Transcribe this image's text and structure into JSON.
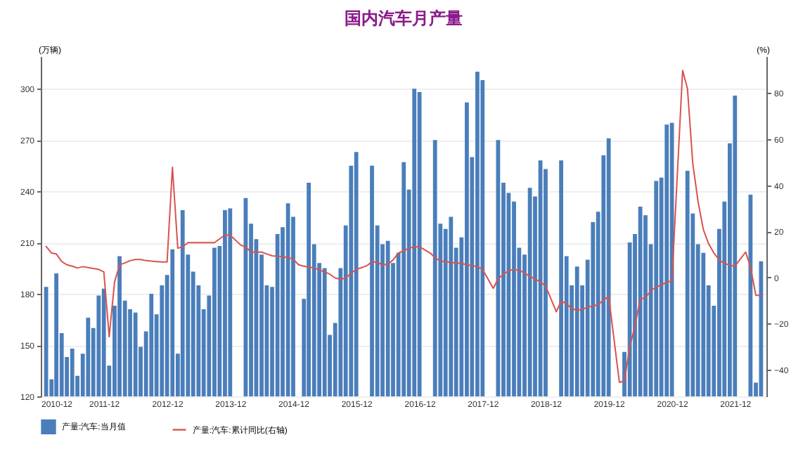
{
  "chart_data": {
    "type": "bar",
    "title": "国内汽车月产量",
    "ylabel": "(万辆)",
    "y2label": "(%)",
    "x": [
      "2011-01",
      "2011-02",
      "2011-03",
      "2011-04",
      "2011-05",
      "2011-06",
      "2011-07",
      "2011-08",
      "2011-09",
      "2011-10",
      "2011-11",
      "2011-12",
      "2012-01",
      "2012-02",
      "2012-03",
      "2012-04",
      "2012-05",
      "2012-06",
      "2012-07",
      "2012-08",
      "2012-09",
      "2012-10",
      "2012-11",
      "2012-12",
      "2013-01",
      "2013-02",
      "2013-03",
      "2013-04",
      "2013-05",
      "2013-06",
      "2013-07",
      "2013-08",
      "2013-09",
      "2013-10",
      "2013-11",
      "2013-12",
      "2014-01",
      "2014-02",
      "2014-03",
      "2014-04",
      "2014-05",
      "2014-06",
      "2014-07",
      "2014-08",
      "2014-09",
      "2014-10",
      "2014-11",
      "2014-12",
      "2015-01",
      "2015-02",
      "2015-03",
      "2015-04",
      "2015-05",
      "2015-06",
      "2015-07",
      "2015-08",
      "2015-09",
      "2015-10",
      "2015-11",
      "2015-12",
      "2016-01",
      "2016-02",
      "2016-03",
      "2016-04",
      "2016-05",
      "2016-06",
      "2016-07",
      "2016-08",
      "2016-09",
      "2016-10",
      "2016-11",
      "2016-12",
      "2017-01",
      "2017-02",
      "2017-03",
      "2017-04",
      "2017-05",
      "2017-06",
      "2017-07",
      "2017-08",
      "2017-09",
      "2017-10",
      "2017-11",
      "2017-12",
      "2018-01",
      "2018-02",
      "2018-03",
      "2018-04",
      "2018-05",
      "2018-06",
      "2018-07",
      "2018-08",
      "2018-09",
      "2018-10",
      "2018-11",
      "2018-12",
      "2019-01",
      "2019-02",
      "2019-03",
      "2019-04",
      "2019-05",
      "2019-06",
      "2019-07",
      "2019-08",
      "2019-09",
      "2019-10",
      "2019-11",
      "2019-12",
      "2020-01",
      "2020-02",
      "2020-03",
      "2020-04",
      "2020-05",
      "2020-06",
      "2020-07",
      "2020-08",
      "2020-09",
      "2020-10",
      "2020-11",
      "2020-12",
      "2021-01",
      "2021-02",
      "2021-03",
      "2021-04",
      "2021-05",
      "2021-06",
      "2021-07",
      "2021-08",
      "2021-09",
      "2021-10",
      "2021-11",
      "2021-12",
      "2022-01",
      "2022-02",
      "2022-03",
      "2022-04",
      "2022-05"
    ],
    "series": [
      {
        "name": "产量:汽车:当月值",
        "axis": "y",
        "color": "#4a7ebb",
        "values": [
          184,
          130,
          192,
          157,
          143,
          148,
          132,
          145,
          166,
          160,
          179,
          183,
          138,
          173,
          202,
          176,
          171,
          169,
          149,
          158,
          180,
          168,
          185,
          191,
          206,
          145,
          229,
          203,
          193,
          185,
          171,
          179,
          207,
          208,
          229,
          230,
          null,
          null,
          236,
          221,
          212,
          203,
          185,
          184,
          215,
          219,
          233,
          225,
          null,
          177,
          245,
          209,
          198,
          195,
          156,
          163,
          195,
          220,
          255,
          263,
          null,
          null,
          255,
          220,
          209,
          211,
          198,
          204,
          257,
          241,
          300,
          298,
          null,
          null,
          270,
          221,
          218,
          225,
          207,
          213,
          292,
          260,
          310,
          305,
          null,
          null,
          270,
          245,
          239,
          234,
          207,
          203,
          242,
          237,
          258,
          253,
          null,
          null,
          258,
          202,
          185,
          196,
          185,
          200,
          222,
          228,
          261,
          271,
          null,
          null,
          146,
          210,
          215,
          231,
          226,
          209,
          246,
          248,
          279,
          280,
          null,
          null,
          252,
          227,
          209,
          204,
          185,
          173,
          218,
          234,
          268,
          296,
          null,
          null,
          238,
          128,
          199
        ]
      },
      {
        "name": "产量:汽车:累计同比(右轴)",
        "type": "line",
        "axis": "y2",
        "color": "#d9534f",
        "values": [
          13.5,
          10.6,
          10.2,
          6.9,
          5.5,
          4.9,
          4.1,
          4.7,
          4.3,
          3.9,
          3.5,
          2.4,
          -25.7,
          -2,
          5.5,
          6.3,
          7.3,
          7.8,
          7.8,
          7.3,
          7.1,
          6.9,
          6.7,
          6.7,
          47.8,
          12.7,
          13.3,
          15.1,
          15.1,
          15.1,
          15.1,
          15.1,
          15.1,
          16.7,
          18.4,
          18.4,
          null,
          14,
          13.3,
          11,
          11,
          11,
          10.2,
          9.4,
          9.2,
          9,
          8.6,
          8,
          5.5,
          4.9,
          4.5,
          4.1,
          3.3,
          2.4,
          1.4,
          -0.2,
          -0.8,
          -0.2,
          1.8,
          3.5,
          null,
          5.1,
          6.9,
          6.5,
          5.5,
          5.7,
          7.6,
          10.6,
          11.6,
          12.7,
          13.3,
          13.3,
          null,
          10.6,
          8.6,
          7.1,
          6.9,
          6.5,
          6.3,
          6.1,
          5.5,
          5.1,
          4.7,
          3.5,
          null,
          -4.7,
          -0.6,
          1.4,
          2.9,
          3.5,
          3.1,
          2,
          0.4,
          -0.6,
          -2,
          -3.7,
          null,
          -14.9,
          -10.2,
          -11.4,
          -13.5,
          -14.3,
          -13.9,
          -12.9,
          -12.4,
          -11.8,
          -9.8,
          -8.2,
          null,
          -45.5,
          -44.9,
          -30.2,
          -21,
          -9.4,
          -8.8,
          -5.7,
          -4.1,
          -3.3,
          -2,
          -1.6,
          null,
          89.8,
          82,
          49.4,
          33.1,
          20.8,
          14.7,
          10.6,
          7.6,
          6.1,
          5.3,
          4.9,
          null,
          11,
          4.5,
          -7.8,
          -7.8
        ]
      }
    ],
    "xlim": [
      "2010-12",
      "2022-06"
    ],
    "xticks": [
      "2010-12",
      "2011-12",
      "2012-12",
      "2013-12",
      "2014-12",
      "2015-12",
      "2016-12",
      "2017-12",
      "2018-12",
      "2019-12",
      "2020-12",
      "2021-12"
    ],
    "ylim": [
      120,
      319
    ],
    "yticks": [
      120,
      150,
      180,
      210,
      240,
      270,
      300
    ],
    "y2lim": [
      -51.6,
      96
    ],
    "y2ticks": [
      -40,
      -20,
      0,
      20,
      40,
      60,
      80
    ],
    "grid": "y",
    "legend": "bottom"
  }
}
